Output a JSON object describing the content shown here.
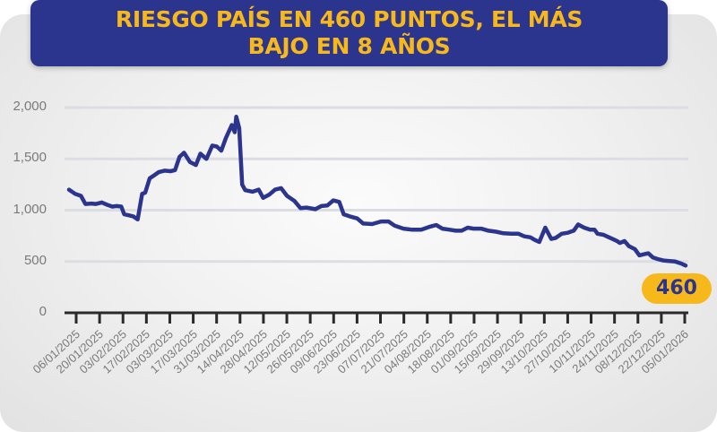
{
  "header": {
    "title_line1": "RIESGO PAÍS EN 460 PUNTOS, EL MÁS",
    "title_line2": "BAJO EN 8 AÑOS"
  },
  "badge": {
    "value": "460"
  },
  "colors": {
    "title_bg": "#2b358d",
    "title_text": "#f7b81c",
    "line": "#2b358d",
    "badge_bg": "#f7b81c",
    "badge_text": "#2b358d"
  },
  "chart_data": {
    "type": "line",
    "title": "RIESGO PAÍS EN 460 PUNTOS, EL MÁS BAJO EN 8 AÑOS",
    "xlabel": "",
    "ylabel": "",
    "ylim": [
      0,
      2000
    ],
    "yticks": [
      "0",
      "500",
      "1,000",
      "1,500",
      "2,000"
    ],
    "grid": true,
    "legend": "none",
    "x_tick_labels": [
      "06/01/2025",
      "20/01/2025",
      "03/02/2025",
      "17/02/2025",
      "03/03/2025",
      "17/03/2025",
      "31/03/2025",
      "14/04/2025",
      "28/04/2025",
      "12/05/2025",
      "26/05/2025",
      "09/06/2025",
      "23/06/2025",
      "07/07/2025",
      "21/07/2025",
      "04/08/2025",
      "18/08/2025",
      "01/09/2025",
      "15/09/2025",
      "29/09/2025",
      "13/10/2025",
      "27/10/2025",
      "10/11/2025",
      "24/11/2025",
      "08/12/2025",
      "22/12/2025",
      "05/01/2026"
    ],
    "series": [
      {
        "name": "Riesgo País",
        "points": [
          [
            "02/01/2025",
            1200
          ],
          [
            "06/01/2025",
            1160
          ],
          [
            "10/01/2025",
            1140
          ],
          [
            "13/01/2025",
            1060
          ],
          [
            "17/01/2025",
            1065
          ],
          [
            "20/01/2025",
            1060
          ],
          [
            "24/01/2025",
            1075
          ],
          [
            "28/01/2025",
            1050
          ],
          [
            "31/01/2025",
            1035
          ],
          [
            "03/02/2025",
            1040
          ],
          [
            "06/02/2025",
            1035
          ],
          [
            "08/02/2025",
            960
          ],
          [
            "11/02/2025",
            950
          ],
          [
            "14/02/2025",
            940
          ],
          [
            "17/02/2025",
            910
          ],
          [
            "20/02/2025",
            1160
          ],
          [
            "22/02/2025",
            1170
          ],
          [
            "25/02/2025",
            1310
          ],
          [
            "28/02/2025",
            1340
          ],
          [
            "03/03/2025",
            1370
          ],
          [
            "07/03/2025",
            1385
          ],
          [
            "11/03/2025",
            1380
          ],
          [
            "14/03/2025",
            1390
          ],
          [
            "17/03/2025",
            1520
          ],
          [
            "20/03/2025",
            1560
          ],
          [
            "24/03/2025",
            1470
          ],
          [
            "28/03/2025",
            1440
          ],
          [
            "31/03/2025",
            1550
          ],
          [
            "04/04/2025",
            1500
          ],
          [
            "08/04/2025",
            1630
          ],
          [
            "11/04/2025",
            1620
          ],
          [
            "14/04/2025",
            1580
          ],
          [
            "17/04/2025",
            1700
          ],
          [
            "21/04/2025",
            1830
          ],
          [
            "23/04/2025",
            1760
          ],
          [
            "24/04/2025",
            1910
          ],
          [
            "26/04/2025",
            1800
          ],
          [
            "28/04/2025",
            1250
          ],
          [
            "30/04/2025",
            1195
          ],
          [
            "05/05/2025",
            1180
          ],
          [
            "09/05/2025",
            1200
          ],
          [
            "12/05/2025",
            1120
          ],
          [
            "16/05/2025",
            1150
          ],
          [
            "20/05/2025",
            1200
          ],
          [
            "24/05/2025",
            1215
          ],
          [
            "28/05/2025",
            1140
          ],
          [
            "02/06/2025",
            1090
          ],
          [
            "06/06/2025",
            1020
          ],
          [
            "10/06/2025",
            1025
          ],
          [
            "16/06/2025",
            1010
          ],
          [
            "20/06/2025",
            1040
          ],
          [
            "24/06/2025",
            1045
          ],
          [
            "28/06/2025",
            1095
          ],
          [
            "02/07/2025",
            1080
          ],
          [
            "05/07/2025",
            960
          ],
          [
            "09/07/2025",
            940
          ],
          [
            "14/07/2025",
            920
          ],
          [
            "18/07/2025",
            870
          ],
          [
            "24/07/2025",
            865
          ],
          [
            "30/07/2025",
            890
          ],
          [
            "04/08/2025",
            890
          ],
          [
            "08/08/2025",
            850
          ],
          [
            "14/08/2025",
            820
          ],
          [
            "20/08/2025",
            810
          ],
          [
            "26/08/2025",
            810
          ],
          [
            "01/09/2025",
            840
          ],
          [
            "05/09/2025",
            855
          ],
          [
            "09/09/2025",
            820
          ],
          [
            "14/09/2025",
            810
          ],
          [
            "18/09/2025",
            800
          ],
          [
            "22/09/2025",
            800
          ],
          [
            "26/09/2025",
            830
          ],
          [
            "30/09/2025",
            820
          ],
          [
            "05/10/2025",
            820
          ],
          [
            "10/10/2025",
            800
          ],
          [
            "15/10/2025",
            790
          ],
          [
            "20/10/2025",
            775
          ],
          [
            "25/10/2025",
            770
          ],
          [
            "30/10/2025",
            770
          ],
          [
            "03/11/2025",
            745
          ],
          [
            "07/11/2025",
            735
          ],
          [
            "10/11/2025",
            710
          ],
          [
            "13/11/2025",
            690
          ],
          [
            "17/11/2025",
            830
          ],
          [
            "21/11/2025",
            720
          ],
          [
            "24/11/2025",
            730
          ],
          [
            "28/11/2025",
            770
          ],
          [
            "02/12/2025",
            780
          ],
          [
            "06/12/2025",
            800
          ],
          [
            "09/12/2025",
            860
          ],
          [
            "13/12/2025",
            830
          ],
          [
            "17/12/2025",
            810
          ],
          [
            "20/12/2025",
            810
          ],
          [
            "22/12/2025",
            770
          ],
          [
            "26/12/2025",
            760
          ],
          [
            "29/12/2025",
            740
          ],
          [
            "01/01/2026",
            720
          ],
          [
            "04/01/2026",
            700
          ],
          [
            "06/01/2026",
            680
          ],
          [
            "09/01/2026",
            700
          ],
          [
            "12/01/2026",
            650
          ],
          [
            "16/01/2026",
            620
          ],
          [
            "19/01/2026",
            560
          ],
          [
            "22/01/2026",
            570
          ],
          [
            "25/01/2026",
            580
          ],
          [
            "28/01/2026",
            540
          ],
          [
            "31/01/2026",
            525
          ],
          [
            "04/02/2026",
            510
          ],
          [
            "08/02/2026",
            505
          ],
          [
            "12/02/2026",
            500
          ],
          [
            "16/02/2026",
            480
          ],
          [
            "19/02/2026",
            460
          ]
        ]
      }
    ],
    "annotations": [
      {
        "label": "460",
        "position": "end"
      }
    ]
  }
}
